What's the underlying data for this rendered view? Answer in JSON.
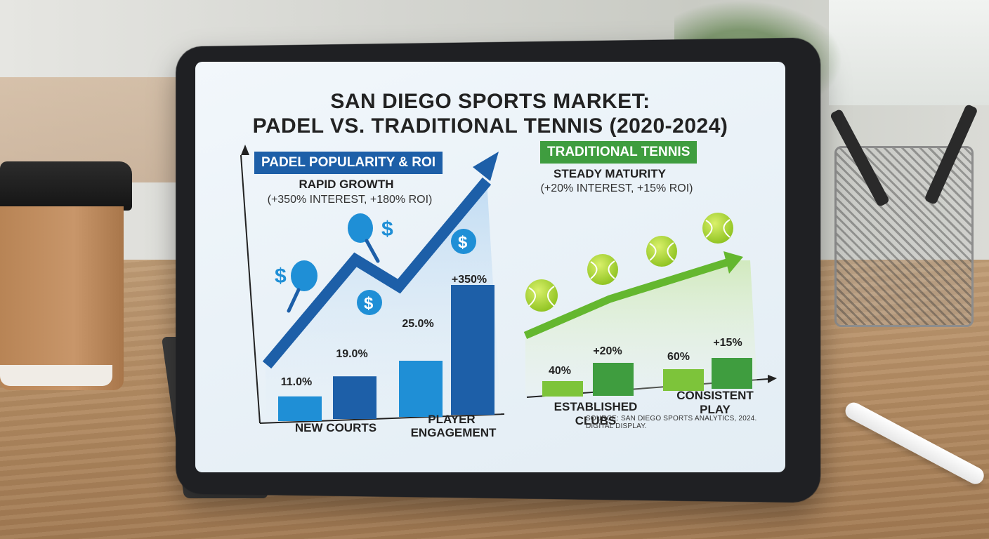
{
  "title_line1": "SAN DIEGO SPORTS MARKET:",
  "title_line2": "PADEL VS. TRADITIONAL TENNIS (2020-2024)",
  "padel": {
    "label": "PADEL POPULARITY & ROI",
    "headline": "RAPID GROWTH",
    "detail": "(+350% INTEREST, +180% ROI)",
    "categories": [
      "NEW COURTS",
      "PLAYER",
      "ENGAGEMENT"
    ]
  },
  "tennis": {
    "label": "TRADITIONAL TENNIS",
    "headline": "STEADY MATURITY",
    "detail": "(+20% INTEREST, +15% ROI)",
    "categories": [
      "ESTABLISHED CLUBS",
      "CONSISTENT PLAY"
    ]
  },
  "source": "SOURCE: SAN DIEGO SPORTS ANALYTICS, 2024. DIGITAL DISPLAY.",
  "icons": [
    "dollar-icon",
    "padel-racket-icon",
    "tennis-ball-icon"
  ],
  "colors": {
    "padel_dark": "#1d5fa8",
    "padel_light": "#1f8fd6",
    "tennis_dark": "#3f9d3f",
    "tennis_light": "#7dc43a"
  },
  "chart_data": [
    {
      "type": "bar",
      "title": "PADEL POPULARITY & ROI",
      "categories": [
        "NEW COURTS",
        "NEW COURTS",
        "PLAYER ENGAGEMENT",
        "PLAYER ENGAGEMENT"
      ],
      "values": [
        11.0,
        19.0,
        25.0,
        350
      ],
      "labels": [
        "11.0%",
        "19.0%",
        "25.0%",
        "+350%"
      ],
      "trend": "rising"
    },
    {
      "type": "bar",
      "title": "TRADITIONAL TENNIS",
      "categories": [
        "ESTABLISHED CLUBS",
        "ESTABLISHED CLUBS",
        "CONSISTENT PLAY",
        "CONSISTENT PLAY"
      ],
      "values": [
        40,
        20,
        60,
        15
      ],
      "labels": [
        "40%",
        "+20%",
        "60%",
        "+15%"
      ],
      "trend": "steady"
    }
  ]
}
